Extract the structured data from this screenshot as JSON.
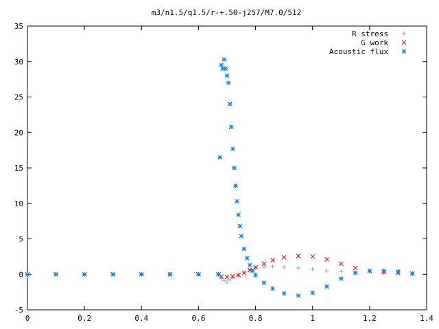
{
  "chart_data": {
    "type": "scatter",
    "title": "m3/n1.5/q1.5/r-+.50-j257/M7.0/512",
    "xlabel": "",
    "ylabel": "",
    "xlim": [
      0,
      1.4
    ],
    "ylim": [
      -5,
      35
    ],
    "x_ticks": [
      "0",
      "0.2",
      "0.4",
      "0.6",
      "0.8",
      "1",
      "1.2",
      "1.4"
    ],
    "y_ticks": [
      "-5",
      "0",
      "5",
      "10",
      "15",
      "20",
      "25",
      "30",
      "35"
    ],
    "legend_position": "top-right",
    "grid": false,
    "series": [
      {
        "name": "R stress",
        "marker": "+",
        "color": "#a0a0a0",
        "points": [
          [
            0.0,
            0
          ],
          [
            0.1,
            0
          ],
          [
            0.2,
            0
          ],
          [
            0.3,
            0
          ],
          [
            0.4,
            0
          ],
          [
            0.5,
            0
          ],
          [
            0.6,
            0
          ],
          [
            0.67,
            0
          ],
          [
            0.68,
            -0.6
          ],
          [
            0.69,
            -0.9
          ],
          [
            0.7,
            -1.1
          ],
          [
            0.71,
            -0.8
          ],
          [
            0.72,
            -0.4
          ],
          [
            0.74,
            -0.1
          ],
          [
            0.76,
            0.3
          ],
          [
            0.78,
            0.6
          ],
          [
            0.8,
            0.9
          ],
          [
            0.83,
            1.0
          ],
          [
            0.86,
            1.1
          ],
          [
            0.9,
            1.0
          ],
          [
            0.95,
            0.9
          ],
          [
            1.0,
            0.7
          ],
          [
            1.05,
            0.5
          ],
          [
            1.1,
            0.4
          ],
          [
            1.15,
            0.3
          ],
          [
            1.2,
            0.3
          ],
          [
            1.25,
            0.2
          ],
          [
            1.3,
            0.2
          ],
          [
            1.35,
            0.1
          ]
        ]
      },
      {
        "name": "G work",
        "marker": "x",
        "color": "#e00000",
        "points": [
          [
            0.0,
            0
          ],
          [
            0.1,
            0
          ],
          [
            0.2,
            0
          ],
          [
            0.3,
            0
          ],
          [
            0.4,
            0
          ],
          [
            0.5,
            0
          ],
          [
            0.6,
            0
          ],
          [
            0.67,
            0
          ],
          [
            0.68,
            -0.3
          ],
          [
            0.7,
            -0.4
          ],
          [
            0.72,
            -0.3
          ],
          [
            0.74,
            -0.1
          ],
          [
            0.76,
            0.2
          ],
          [
            0.78,
            0.6
          ],
          [
            0.8,
            1.0
          ],
          [
            0.83,
            1.5
          ],
          [
            0.86,
            2.0
          ],
          [
            0.9,
            2.4
          ],
          [
            0.95,
            2.6
          ],
          [
            1.0,
            2.5
          ],
          [
            1.05,
            2.1
          ],
          [
            1.1,
            1.5
          ],
          [
            1.15,
            0.9
          ],
          [
            1.2,
            0.5
          ],
          [
            1.25,
            0.3
          ],
          [
            1.3,
            0.2
          ],
          [
            1.35,
            0.1
          ]
        ]
      },
      {
        "name": "Acoustic flux",
        "marker": "*",
        "color": "#0080e0",
        "points": [
          [
            0.0,
            0
          ],
          [
            0.1,
            0
          ],
          [
            0.2,
            0
          ],
          [
            0.3,
            0
          ],
          [
            0.4,
            0
          ],
          [
            0.5,
            0
          ],
          [
            0.6,
            0
          ],
          [
            0.67,
            0
          ],
          [
            0.675,
            16.5
          ],
          [
            0.68,
            29.5
          ],
          [
            0.685,
            29.0
          ],
          [
            0.69,
            30.3
          ],
          [
            0.695,
            29.0
          ],
          [
            0.7,
            28.0
          ],
          [
            0.705,
            27.0
          ],
          [
            0.71,
            24.0
          ],
          [
            0.715,
            20.8
          ],
          [
            0.72,
            17.7
          ],
          [
            0.725,
            15.0
          ],
          [
            0.73,
            12.5
          ],
          [
            0.735,
            10.3
          ],
          [
            0.74,
            8.4
          ],
          [
            0.745,
            6.8
          ],
          [
            0.75,
            5.4
          ],
          [
            0.76,
            3.6
          ],
          [
            0.77,
            2.3
          ],
          [
            0.78,
            1.3
          ],
          [
            0.79,
            0.5
          ],
          [
            0.8,
            -0.1
          ],
          [
            0.83,
            -1.2
          ],
          [
            0.86,
            -2.0
          ],
          [
            0.9,
            -2.7
          ],
          [
            0.95,
            -3.0
          ],
          [
            1.0,
            -2.6
          ],
          [
            1.05,
            -1.7
          ],
          [
            1.1,
            -0.6
          ],
          [
            1.15,
            0.2
          ],
          [
            1.2,
            0.5
          ],
          [
            1.25,
            0.5
          ],
          [
            1.3,
            0.4
          ],
          [
            1.35,
            0.1
          ]
        ]
      }
    ]
  }
}
